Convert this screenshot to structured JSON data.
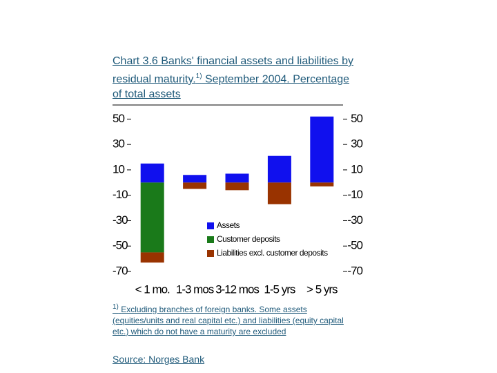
{
  "chart_data": {
    "type": "bar",
    "title": "Chart 3.6 Banks' financial assets and liabilities by residual maturity.",
    "title_note_marker": "1)",
    "title_end": " September 2004. Percentage of total assets",
    "categories": [
      "< 1 mo.",
      "1-3 mos",
      "3-12 mos",
      "1-5 yrs",
      "> 5 yrs"
    ],
    "series": [
      {
        "name": "Assets",
        "color": "#1010ee",
        "values": [
          15,
          6,
          7,
          21,
          52
        ]
      },
      {
        "name": "Customer deposits",
        "color": "#1a7a1a",
        "values": [
          -55,
          null,
          null,
          null,
          null
        ]
      },
      {
        "name": "Liabilities excl. customer deposits",
        "color": "#993300",
        "values": [
          -8,
          -5,
          -6,
          -17,
          -3
        ]
      }
    ],
    "stacked": true,
    "ylim": [
      -70,
      60
    ],
    "yticks": [
      50,
      30,
      10,
      -10,
      -30,
      -50,
      -70
    ],
    "y2lim": [
      -70,
      60
    ],
    "y2ticks": [
      50,
      30,
      10,
      -10,
      -30,
      -50,
      -70
    ],
    "legend": "inside",
    "footnote_marker": "1)",
    "footnote": "Excluding branches of  foreign banks. Some assets (equities/units and real capital etc.) and liabilities (equity capital etc.) which do not have a maturity are excluded",
    "source": "Source: Norges Bank"
  }
}
